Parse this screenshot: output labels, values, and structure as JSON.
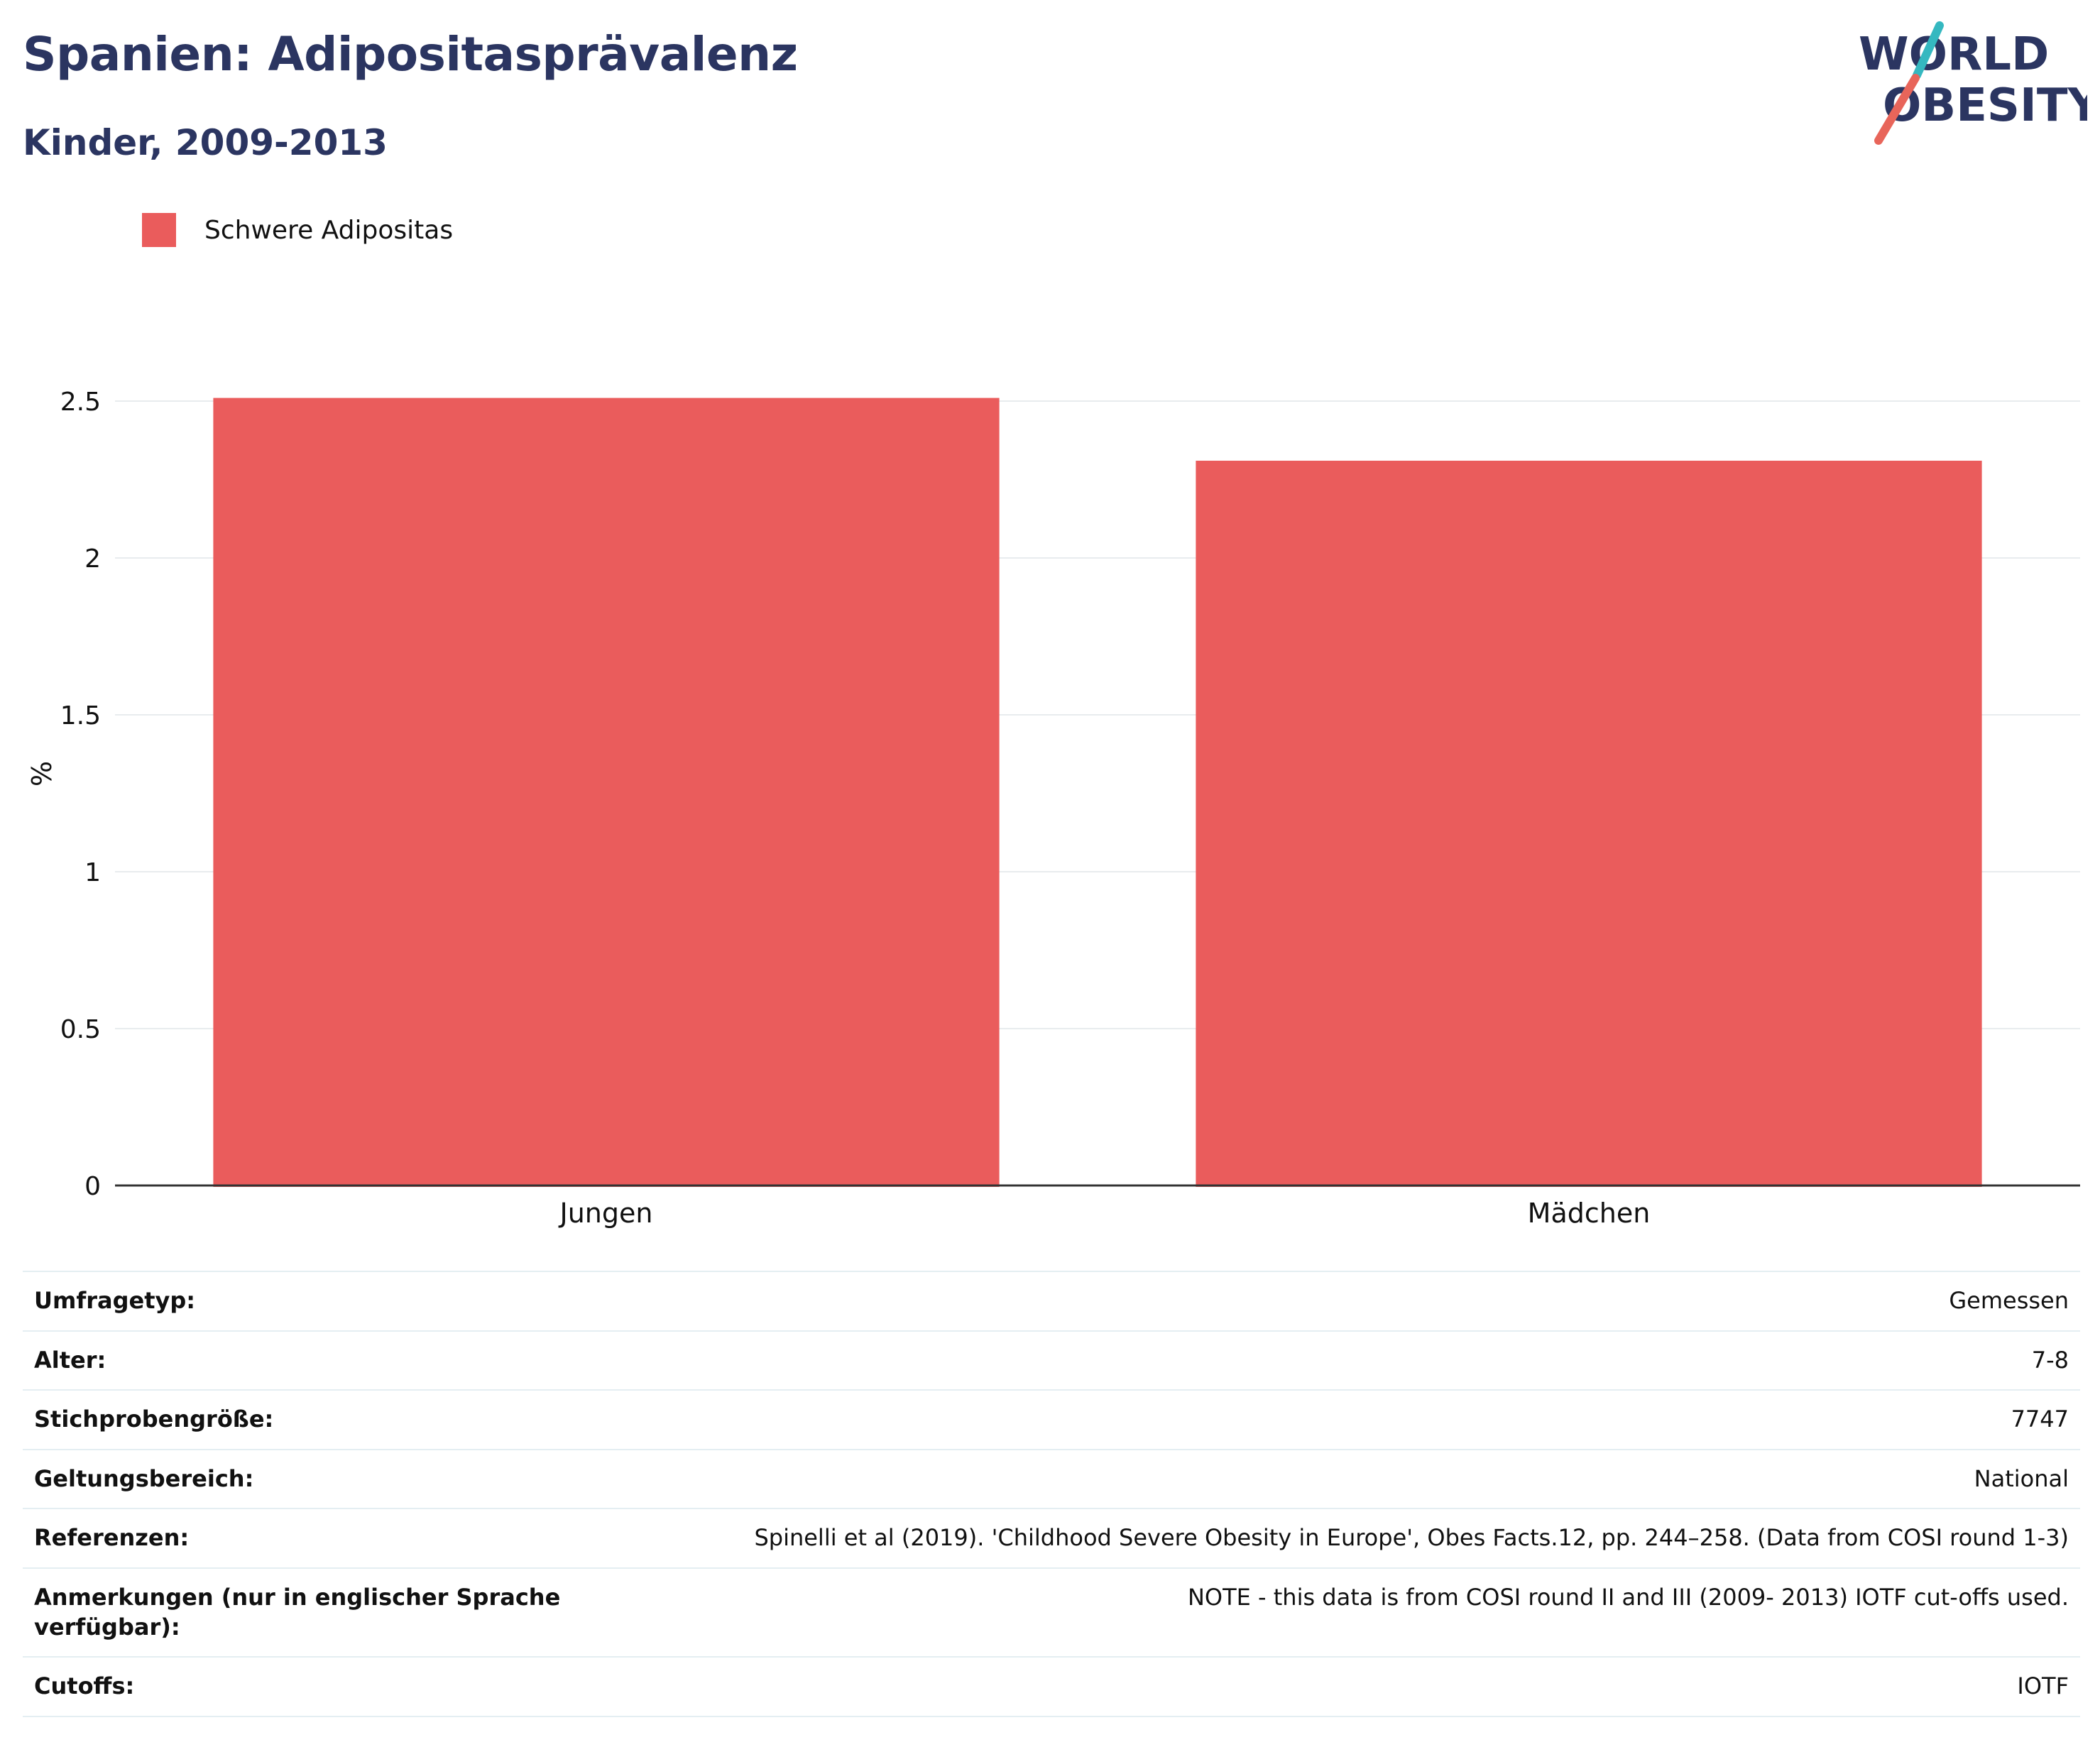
{
  "header": {
    "title": "Spanien: Adipositasprävalenz",
    "subtitle": "Kinder, 2009-2013"
  },
  "logo": {
    "line1": "WORLD",
    "line2": "OBESITY",
    "colors": {
      "text": "#2b3561",
      "slash_teal": "#35b8c0",
      "slash_red": "#e8655a"
    }
  },
  "colors": {
    "bar": "#ea5c5c",
    "gridline": "#e8ecee",
    "axis": "#333333",
    "title": "#2b3561"
  },
  "chart_data": {
    "type": "bar",
    "categories": [
      "Jungen",
      "Mädchen"
    ],
    "series": [
      {
        "name": "Schwere Adipositas",
        "values": [
          2.51,
          2.31
        ]
      }
    ],
    "ylabel": "%",
    "xlabel": "",
    "ylim": [
      0,
      2.7
    ],
    "yticks": [
      0,
      0.5,
      1,
      1.5,
      2,
      2.5
    ],
    "ytick_labels": [
      "0",
      "0.5",
      "1",
      "1.5",
      "2",
      "2.5"
    ],
    "grid": true,
    "legend_position": "top-left"
  },
  "info_table": [
    {
      "label": "Umfragetyp:",
      "value": "Gemessen"
    },
    {
      "label": "Alter:",
      "value": "7-8"
    },
    {
      "label": "Stichprobengröße:",
      "value": "7747"
    },
    {
      "label": "Geltungsbereich:",
      "value": "National"
    },
    {
      "label": "Referenzen:",
      "value": "Spinelli et al (2019). 'Childhood Severe Obesity in Europe', Obes Facts.12, pp. 244–258. (Data from COSI round 1-3)"
    },
    {
      "label": "Anmerkungen (nur in englischer Sprache verfügbar):",
      "value": "NOTE - this data is from COSI round II and III (2009- 2013) IOTF cut-offs used."
    },
    {
      "label": "Cutoffs:",
      "value": "IOTF"
    }
  ]
}
